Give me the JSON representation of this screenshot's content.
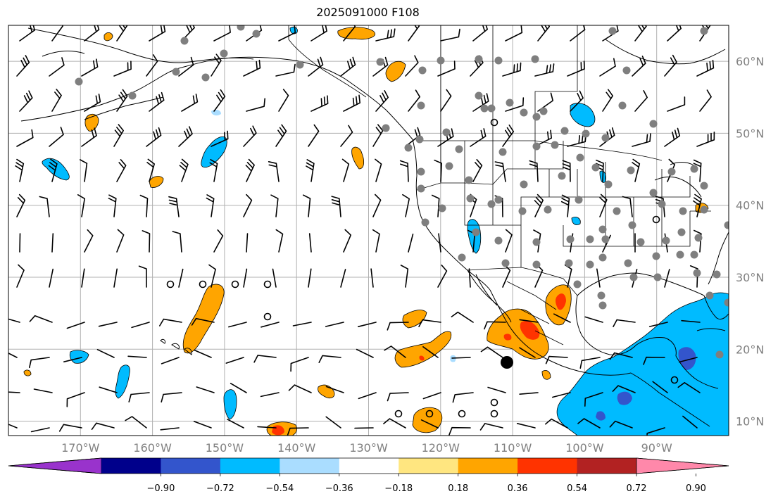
{
  "title": "2025091000 F108",
  "map": {
    "lon_labels": [
      {
        "label": "170°W",
        "lon": -170
      },
      {
        "label": "160°W",
        "lon": -160
      },
      {
        "label": "150°W",
        "lon": -150
      },
      {
        "label": "140°W",
        "lon": -140
      },
      {
        "label": "130°W",
        "lon": -130
      },
      {
        "label": "120°W",
        "lon": -120
      },
      {
        "label": "110°W",
        "lon": -110
      },
      {
        "label": "100°W",
        "lon": -100
      },
      {
        "label": "90°W",
        "lon": -90
      }
    ],
    "lat_labels": [
      {
        "label": "60°N",
        "lat": 60
      },
      {
        "label": "50°N",
        "lat": 50
      },
      {
        "label": "40°N",
        "lat": 40
      },
      {
        "label": "30°N",
        "lat": 30
      },
      {
        "label": "20°N",
        "lat": 20
      },
      {
        "label": "10°N",
        "lat": 10
      }
    ],
    "extent": {
      "lon_min": -180,
      "lon_max": -80,
      "lat_min": 8,
      "lat_max": 65
    },
    "grid_color": "#b0b0b0",
    "label_color": "#808080"
  },
  "colorbar": {
    "ticks": [
      "−0.90",
      "−0.72",
      "−0.54",
      "−0.36",
      "−0.18",
      "0.18",
      "0.36",
      "0.54",
      "0.72",
      "0.90"
    ],
    "colors": [
      "#9933cc",
      "#00008b",
      "#3355cc",
      "#00bbff",
      "#aaddff",
      "#ffffff",
      "#ffe680",
      "#ffa500",
      "#ff3300",
      "#b22222",
      "#ff88aa"
    ],
    "extend": "both"
  }
}
